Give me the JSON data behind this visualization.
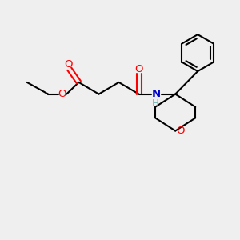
{
  "bg_color": "#efefef",
  "bond_color": "#000000",
  "O_color": "#ff0000",
  "N_color": "#0000cc",
  "H_color": "#7ab8b8",
  "line_width": 1.5,
  "font_size_atom": 9.5,
  "fig_w": 3.0,
  "fig_h": 3.0,
  "dpi": 100,
  "xlim": [
    0,
    10
  ],
  "ylim": [
    0,
    10
  ]
}
